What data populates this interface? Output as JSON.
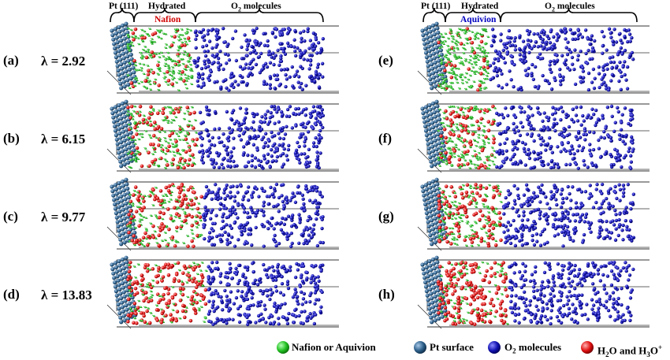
{
  "header_left": {
    "pt_label": "Pt (111)",
    "hydrated_label": "Hydrated",
    "ionomer_label": "Nafion",
    "o2_label_prefix": "O",
    "o2_label_sub": "2",
    "o2_label_suffix": " molecules"
  },
  "header_right": {
    "pt_label": "Pt (111)",
    "hydrated_label": "Hydrated",
    "ionomer_label": "Aquivion",
    "o2_label_prefix": "O",
    "o2_label_sub": "2",
    "o2_label_suffix": " molecules"
  },
  "panels": [
    {
      "label": "(a)",
      "lambda_text": "λ = 2.92",
      "ionomer": "Nafion",
      "water_fraction": 0.15
    },
    {
      "label": "(b)",
      "lambda_text": "λ = 6.15",
      "ionomer": "Nafion",
      "water_fraction": 0.3
    },
    {
      "label": "(c)",
      "lambda_text": "λ = 9.77",
      "ionomer": "Nafion",
      "water_fraction": 0.45
    },
    {
      "label": "(d)",
      "lambda_text": "λ = 13.83",
      "ionomer": "Nafion",
      "water_fraction": 0.65
    },
    {
      "label": "(e)",
      "lambda_text": "",
      "ionomer": "Aquivion",
      "water_fraction": 0.12
    },
    {
      "label": "(f)",
      "lambda_text": "",
      "ionomer": "Aquivion",
      "water_fraction": 0.35
    },
    {
      "label": "(g)",
      "lambda_text": "",
      "ionomer": "Aquivion",
      "water_fraction": 0.5
    },
    {
      "label": "(h)",
      "lambda_text": "",
      "ionomer": "Aquivion",
      "water_fraction": 0.7
    }
  ],
  "legend": [
    {
      "name": "ionomer",
      "text": "Nafion or Aquivion",
      "color": "#22c022"
    },
    {
      "name": "pt",
      "text": "Pt surface",
      "color": "#2c5f8a"
    },
    {
      "name": "o2",
      "text_prefix": "O",
      "text_sub": "2",
      "text_suffix": " molecules",
      "color": "#1010b0"
    },
    {
      "name": "water",
      "text_prefix": "H",
      "text_sub": "2",
      "text_mid": "O and H",
      "text_mid_sub": "3",
      "text_suffix": "O",
      "text_sup": "+",
      "color": "#e01010"
    }
  ],
  "colors": {
    "ionomer": "#22c022",
    "pt": "#2c5f8a",
    "o2": "#1010b0",
    "water": "#e01010",
    "box_line": "#333333"
  }
}
